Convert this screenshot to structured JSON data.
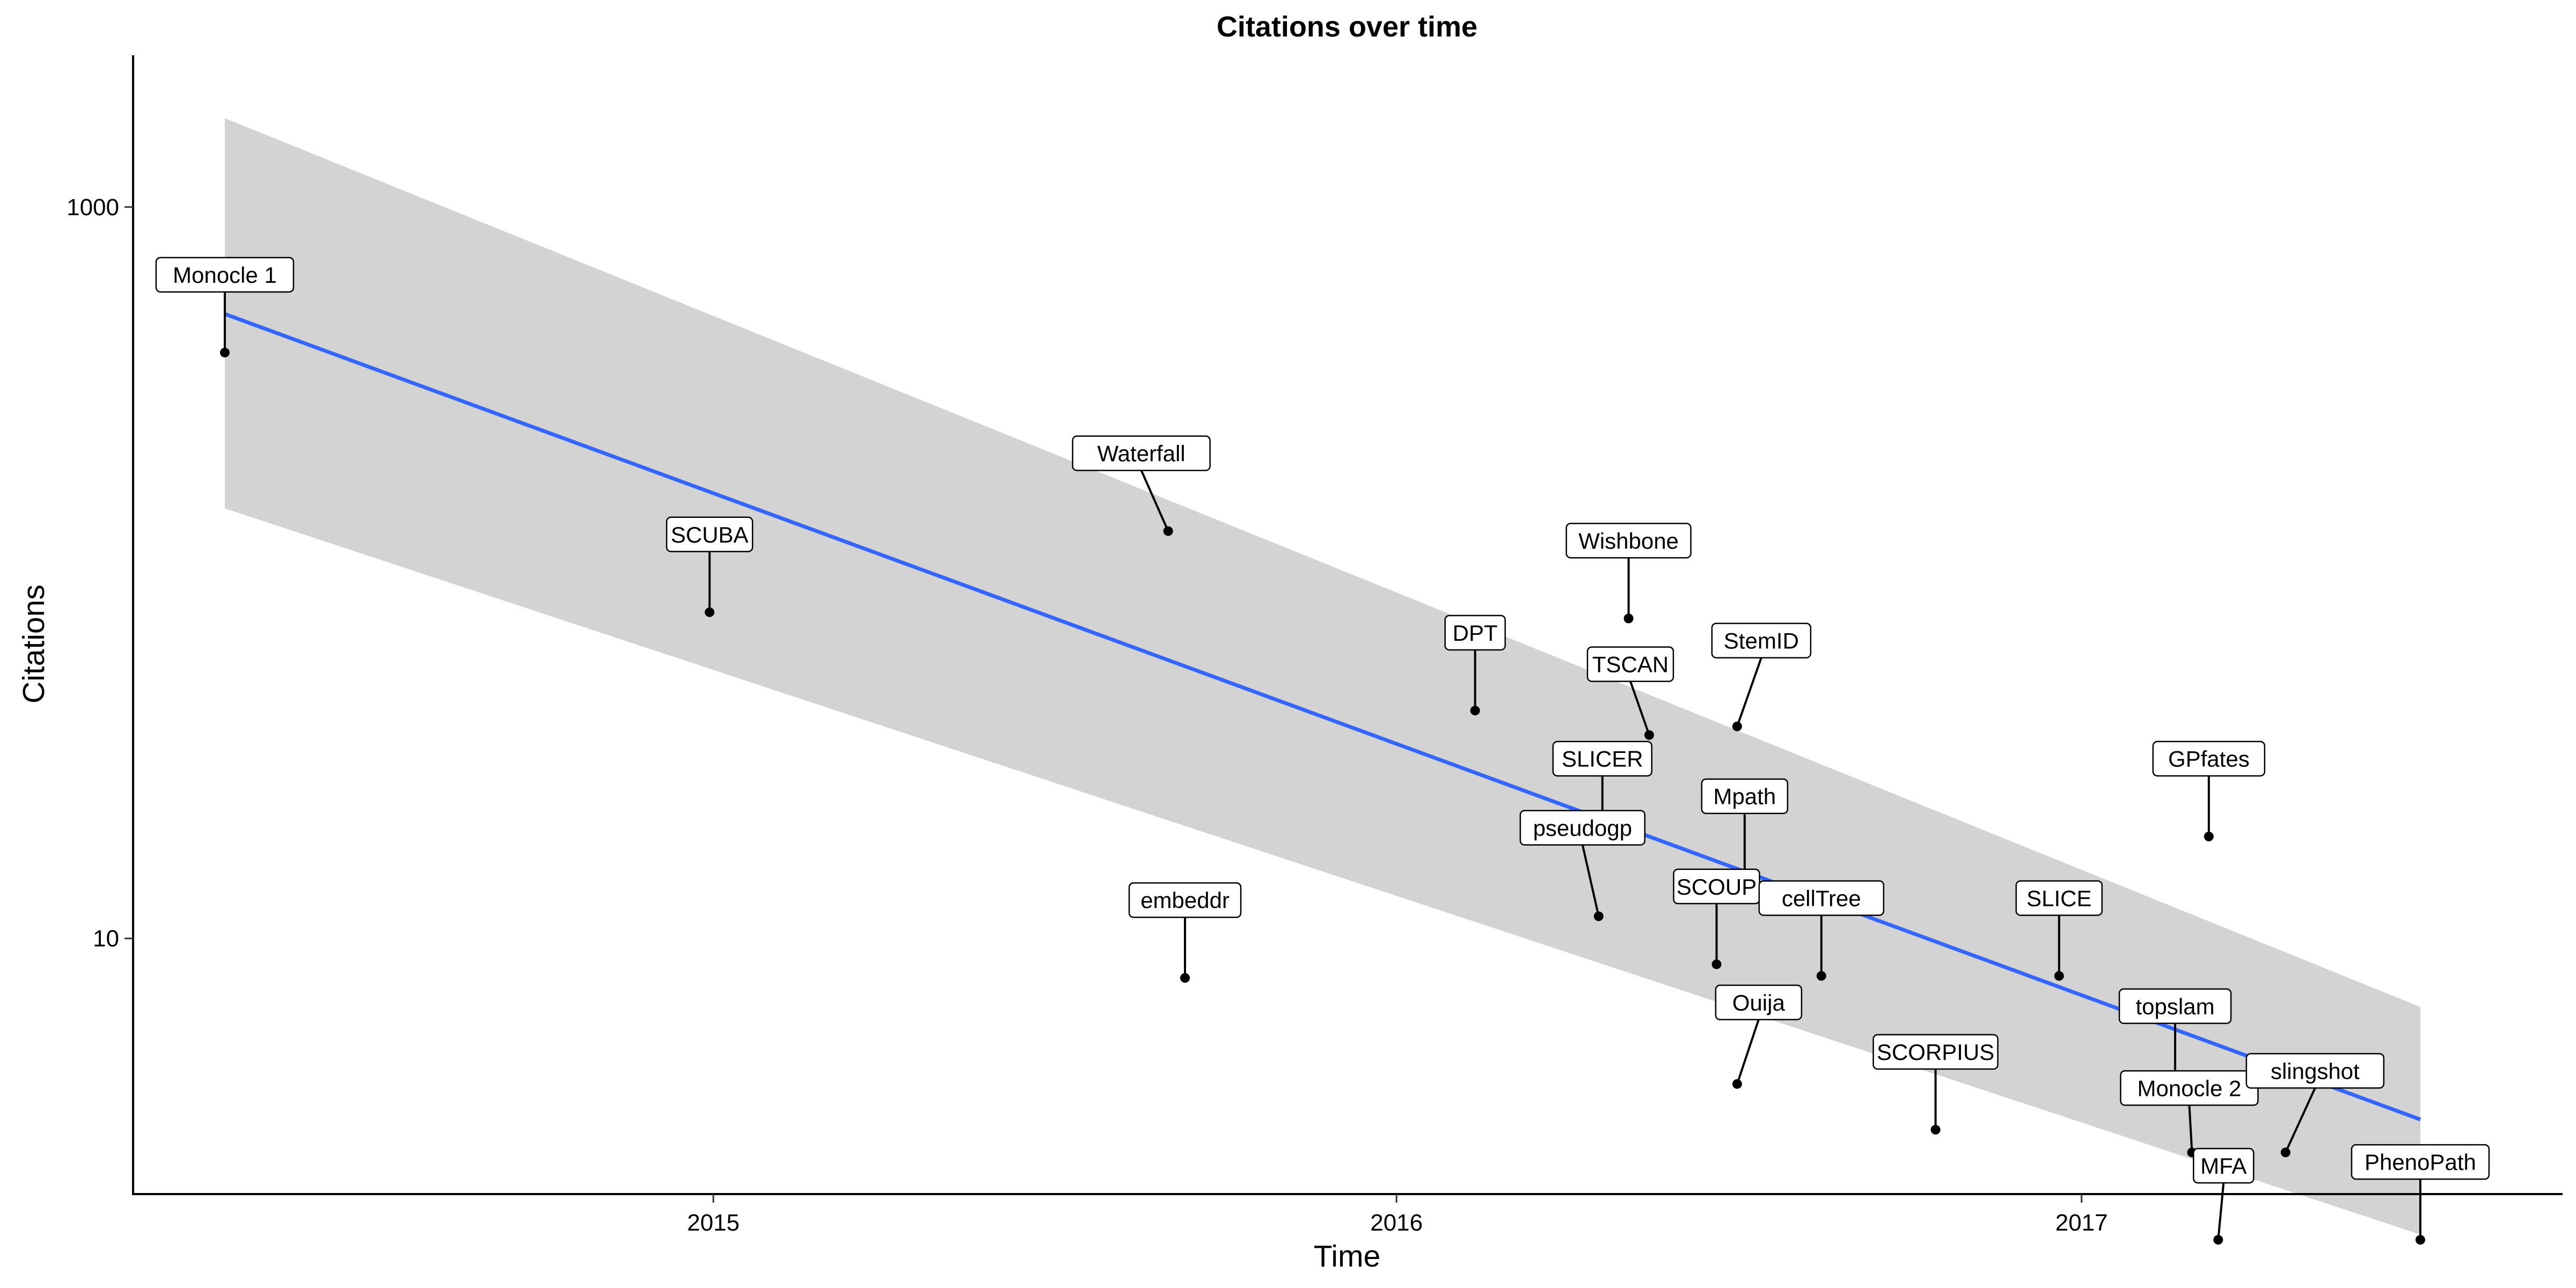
{
  "chart_data": {
    "type": "scatter",
    "title": "Citations over time",
    "xlabel": "Time",
    "ylabel": "Citations",
    "x_ticks": [
      "2015",
      "2016",
      "2017"
    ],
    "y_ticks": [
      "10",
      "1000"
    ],
    "y_scale": "log10",
    "xlim": [
      "2014-02-25",
      "2017-09-15"
    ],
    "ylim": [
      2.0,
      2600
    ],
    "grid": false,
    "legend": "none",
    "trend": {
      "type": "log-linear fit with confidence band",
      "color": "#3366FF",
      "band_color": "#D3D3D3",
      "x_range": [
        "2014-04-15",
        "2017-07-01"
      ],
      "y_fit": [
        510,
        3.2
      ],
      "band_upper": [
        1750,
        6.5
      ],
      "band_lower": [
        150,
        1.55
      ]
    },
    "points": [
      {
        "label": "Monocle 1",
        "date": "2014-04-15",
        "citations": 400
      },
      {
        "label": "SCUBA",
        "date": "2014-12-30",
        "citations": 78
      },
      {
        "label": "Waterfall",
        "date": "2015-09-01",
        "citations": 130
      },
      {
        "label": "embeddr",
        "date": "2015-09-10",
        "citations": 7.8
      },
      {
        "label": "DPT",
        "date": "2016-02-12",
        "citations": 42
      },
      {
        "label": "Wishbone",
        "date": "2016-05-04",
        "citations": 75
      },
      {
        "label": "TSCAN",
        "date": "2016-05-15",
        "citations": 36
      },
      {
        "label": "StemID",
        "date": "2016-07-01",
        "citations": 38
      },
      {
        "label": "SLICER",
        "date": "2016-04-20",
        "citations": 19
      },
      {
        "label": "pseudogp",
        "date": "2016-04-18",
        "citations": 11.5
      },
      {
        "label": "Mpath",
        "date": "2016-07-05",
        "citations": 15
      },
      {
        "label": "SCOUP",
        "date": "2016-06-20",
        "citations": 8.5
      },
      {
        "label": "Ouija",
        "date": "2016-07-01",
        "citations": 4
      },
      {
        "label": "cellTree",
        "date": "2016-08-15",
        "citations": 7.9
      },
      {
        "label": "SCORPIUS",
        "date": "2016-10-15",
        "citations": 3
      },
      {
        "label": "SLICE",
        "date": "2016-12-20",
        "citations": 7.9
      },
      {
        "label": "GPfates",
        "date": "2017-03-10",
        "citations": 19
      },
      {
        "label": "topslam",
        "date": "2017-02-20",
        "citations": 4
      },
      {
        "label": "Monocle 2",
        "date": "2017-03-01",
        "citations": 2.6
      },
      {
        "label": "slingshot",
        "date": "2017-04-20",
        "citations": 2.6
      },
      {
        "label": "MFA",
        "date": "2017-03-15",
        "citations": 1.5
      },
      {
        "label": "PhenoPath",
        "date": "2017-07-01",
        "citations": 1.5
      }
    ]
  }
}
